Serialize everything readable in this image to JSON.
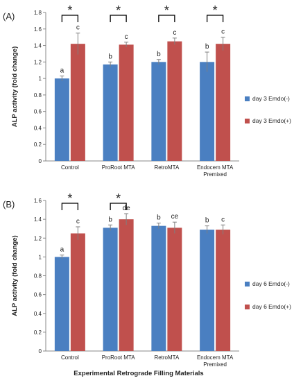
{
  "xlabel": "Experimental Retrograde Filling Materials",
  "colors": {
    "minus": "#4a7fc1",
    "plus": "#c0504d",
    "error": "#7f7f7f",
    "bracket": "#000000"
  },
  "chart_data": [
    {
      "type": "bar",
      "panel_label": "(A)",
      "ylabel": "ALP activity (fold change)",
      "ylim": [
        0,
        1.8
      ],
      "yticks": [
        0,
        0.2,
        0.4,
        0.6,
        0.8,
        1,
        1.2,
        1.4,
        1.6,
        1.8
      ],
      "ytick_labels": [
        "0",
        "0.2",
        "0.4",
        "0.6",
        "0.8",
        "1",
        "1.2",
        "1.4",
        "1.6",
        "1.8"
      ],
      "categories": [
        [
          "Control"
        ],
        [
          "ProRoot MTA"
        ],
        [
          "RetroMTA"
        ],
        [
          "Endocem MTA",
          "Premixed"
        ]
      ],
      "series": [
        {
          "name": "day 3 Emdo(-)",
          "values": [
            1.0,
            1.17,
            1.2,
            1.2
          ],
          "errors": [
            0.03,
            0.03,
            0.03,
            0.12
          ],
          "letters": [
            "a",
            "b",
            "b",
            "b"
          ]
        },
        {
          "name": "day 3 Emdo(+)",
          "values": [
            1.42,
            1.41,
            1.45,
            1.42
          ],
          "errors": [
            0.13,
            0.03,
            0.04,
            0.08
          ],
          "letters": [
            "c",
            "c",
            "c",
            "c"
          ]
        }
      ],
      "significance": [
        0,
        1,
        2,
        3
      ],
      "star": "*",
      "legend_position": "right"
    },
    {
      "type": "bar",
      "panel_label": "(B)",
      "ylabel": "ALP activity (fold change)",
      "ylim": [
        0,
        1.6
      ],
      "yticks": [
        0,
        0.2,
        0.4,
        0.6,
        0.8,
        1,
        1.2,
        1.4,
        1.6
      ],
      "ytick_labels": [
        "0",
        "0.2",
        "0.4",
        "0.6",
        "0.8",
        "1",
        "1.2",
        "1.4",
        "1.6"
      ],
      "categories": [
        [
          "Control"
        ],
        [
          "ProRoot MTA"
        ],
        [
          "RetroMTA"
        ],
        [
          "Endocem MTA",
          "Premixed"
        ]
      ],
      "series": [
        {
          "name": "day 6 Emdo(-)",
          "values": [
            1.0,
            1.31,
            1.33,
            1.29
          ],
          "errors": [
            0.02,
            0.03,
            0.03,
            0.04
          ],
          "letters": [
            "a",
            "b",
            "b",
            "b"
          ]
        },
        {
          "name": "day 6 Emdo(+)",
          "values": [
            1.25,
            1.4,
            1.31,
            1.29
          ],
          "errors": [
            0.07,
            0.06,
            0.06,
            0.05
          ],
          "letters": [
            "c",
            "de",
            "ce",
            "c"
          ]
        }
      ],
      "significance": [
        0,
        1
      ],
      "star": "*",
      "legend_position": "right"
    }
  ]
}
